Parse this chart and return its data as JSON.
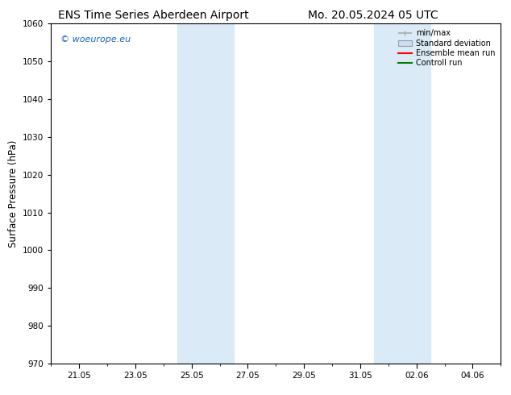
{
  "title_left": "ENS Time Series Aberdeen Airport",
  "title_right": "Mo. 20.05.2024 05 UTC",
  "ylabel": "Surface Pressure (hPa)",
  "ylim": [
    970,
    1060
  ],
  "yticks": [
    970,
    980,
    990,
    1000,
    1010,
    1020,
    1030,
    1040,
    1050,
    1060
  ],
  "xtick_labels": [
    "21.05",
    "23.05",
    "25.05",
    "27.05",
    "29.05",
    "31.05",
    "02.06",
    "04.06"
  ],
  "xtick_positions": [
    1,
    3,
    5,
    7,
    9,
    11,
    13,
    15
  ],
  "xlim": [
    0,
    16
  ],
  "shaded_regions": [
    {
      "start": 4.5,
      "end": 6.5,
      "color": "#daeaf7"
    },
    {
      "start": 11.5,
      "end": 13.5,
      "color": "#daeaf7"
    }
  ],
  "watermark_text": "© woeurope.eu",
  "watermark_color": "#1565C0",
  "background_color": "#ffffff",
  "grid_color": "#e0e0e0",
  "spine_color": "#000000",
  "title_fontsize": 10,
  "tick_fontsize": 7.5,
  "label_fontsize": 8.5,
  "minmax_color": "#aaaaaa",
  "std_facecolor": "#ccddef",
  "std_edgecolor": "#9999aa",
  "ens_color": "red",
  "ctrl_color": "green"
}
